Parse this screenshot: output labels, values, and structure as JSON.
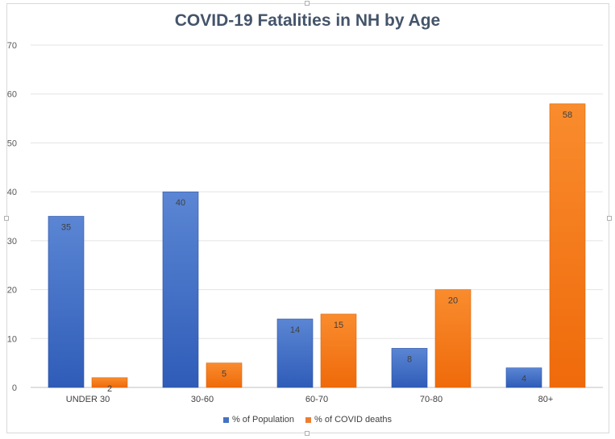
{
  "chart_data": {
    "type": "bar",
    "title": "COVID-19 Fatalities in NH by Age",
    "categories": [
      "UNDER 30",
      "30-60",
      "60-70",
      "70-80",
      "80+"
    ],
    "series": [
      {
        "name": "% of Population",
        "values": [
          35,
          40,
          14,
          8,
          4
        ],
        "color": "#4472c4"
      },
      {
        "name": "% of COVID deaths",
        "values": [
          2,
          5,
          15,
          20,
          58
        ],
        "color": "#ed7d31"
      }
    ],
    "yticks": [
      "0",
      "10",
      "20",
      "30",
      "40",
      "50",
      "60",
      "70"
    ],
    "ylim": [
      0,
      70
    ],
    "xlabel": "",
    "ylabel": "",
    "grid": true,
    "legend_position": "bottom"
  }
}
